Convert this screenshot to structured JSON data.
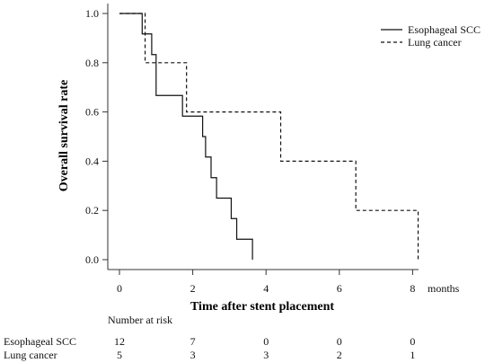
{
  "chart_data": {
    "type": "line",
    "subtype": "kaplan-meier",
    "xlabel": "Time after stent placement",
    "x_unit_label": "months",
    "ylabel": "Overall survival rate",
    "xlim": [
      0,
      8
    ],
    "ylim": [
      0,
      1
    ],
    "x_ticks": [
      0,
      2,
      4,
      6,
      8
    ],
    "y_ticks": [
      0.0,
      0.2,
      0.4,
      0.6,
      0.8,
      1.0
    ],
    "y_tick_labels": [
      "0.0",
      "0.2",
      "0.4",
      "0.6",
      "0.8",
      "1.0"
    ],
    "grid": false,
    "legend_position": "top-right",
    "series": [
      {
        "name": "Esophageal SCC",
        "line_style": "solid",
        "color": "#111111",
        "steps": [
          [
            0.0,
            1.0
          ],
          [
            0.62,
            0.917
          ],
          [
            0.88,
            0.833
          ],
          [
            1.0,
            0.667
          ],
          [
            1.72,
            0.583
          ],
          [
            2.27,
            0.5
          ],
          [
            2.35,
            0.417
          ],
          [
            2.5,
            0.333
          ],
          [
            2.65,
            0.25
          ],
          [
            3.05,
            0.167
          ],
          [
            3.2,
            0.083
          ],
          [
            3.63,
            0.0
          ]
        ]
      },
      {
        "name": "Lung cancer",
        "line_style": "dashed",
        "color": "#111111",
        "steps": [
          [
            0.0,
            1.0
          ],
          [
            0.7,
            0.8
          ],
          [
            1.83,
            0.6
          ],
          [
            4.4,
            0.4
          ],
          [
            6.45,
            0.2
          ],
          [
            8.15,
            0.0
          ]
        ]
      }
    ],
    "risk_table": {
      "title": "Number at risk",
      "times": [
        0,
        2,
        4,
        6,
        8
      ],
      "rows": [
        {
          "label": "Esophageal SCC",
          "values": [
            "12",
            "7",
            "0",
            "0",
            "0"
          ]
        },
        {
          "label": "Lung cancer",
          "values": [
            "5",
            "3",
            "3",
            "2",
            "1"
          ]
        }
      ]
    }
  }
}
